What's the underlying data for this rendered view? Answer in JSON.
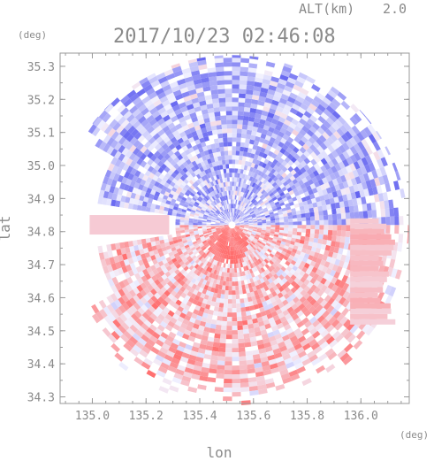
{
  "header": {
    "alt_label": "ALT(km)",
    "alt_value": "2.0",
    "timestamp": "2017/10/23 02:46:08",
    "y_unit": "(deg)",
    "x_unit": "(deg)"
  },
  "colors": {
    "positive": "#ff7d7d",
    "negative": "#6b6bf2",
    "neutral": "#f2f2ff",
    "frame": "#9a9a9a",
    "grid": "#d0d0d0",
    "text": "#8a8a8a"
  },
  "chart_data": {
    "type": "heatmap",
    "title": "2017/10/23 02:46:08",
    "subtitle": "ALT(km) 2.0",
    "xlabel": "lon",
    "ylabel": "lat",
    "x_unit": "(deg)",
    "y_unit": "(deg)",
    "xlim": [
      134.88,
      136.18
    ],
    "ylim": [
      34.28,
      35.34
    ],
    "x_ticks": [
      "135.0",
      "135.2",
      "135.4",
      "135.6",
      "135.8",
      "136.0"
    ],
    "y_ticks": [
      "34.3",
      "34.4",
      "34.5",
      "34.6",
      "34.7",
      "34.8",
      "34.9",
      "35.0",
      "35.1",
      "35.2",
      "35.3"
    ],
    "grid": false,
    "colorscale": "diverging blue-white-red (Doppler velocity style)",
    "radar_center": {
      "lon": 135.52,
      "lat": 34.82
    },
    "regions": [
      {
        "name": "north half",
        "dominant": "blue",
        "lat_range": [
          34.82,
          35.33
        ]
      },
      {
        "name": "south half",
        "dominant": "red",
        "lat_range": [
          34.29,
          34.82
        ]
      },
      {
        "name": "strong red core near center",
        "dominant": "red",
        "lon": 135.51,
        "lat": 34.75
      },
      {
        "name": "west wedge gap",
        "dominant": "none",
        "lon_range": [
          134.88,
          135.1
        ],
        "lat_range": [
          34.6,
          34.8
        ]
      }
    ]
  }
}
